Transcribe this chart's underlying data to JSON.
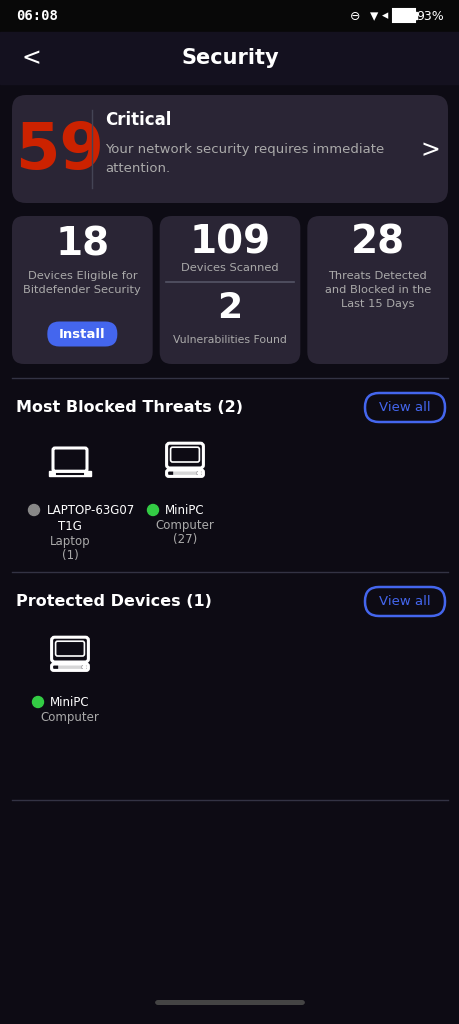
{
  "bg_color": "#0d0b14",
  "card_color": "#2a2535",
  "status_bar_bg": "#080808",
  "header_bg": "#14111f",
  "title": "Security",
  "time": "06:08",
  "battery": "93%",
  "critical_score": "59",
  "critical_label": "Critical",
  "critical_msg_line1": "Your network security requires immediate",
  "critical_msg_line2": "attention.",
  "stat1_value": "18",
  "stat1_label_line1": "Devices Eligible for",
  "stat1_label_line2": "Bitdefender Security",
  "stat1_button": "Install",
  "stat2_value": "109",
  "stat2_label": "Devices Scanned",
  "stat2_sub_value": "2",
  "stat2_sub_label": "Vulnerabilities Found",
  "stat3_value": "28",
  "stat3_label_line1": "Threats Detected",
  "stat3_label_line2": "and Blocked in the",
  "stat3_label_line3": "Last 15 Days",
  "section1_title": "Most Blocked Threats (2)",
  "section1_btn": "View all",
  "device1_name_line1": "LAPTOP-63G07",
  "device1_name_line2": "T1G",
  "device1_type_line1": "Laptop",
  "device1_type_line2": "(1)",
  "device1_dot_color": "#888888",
  "device2_name": "MiniPC",
  "device2_type_line1": "Computer",
  "device2_type_line2": "(27)",
  "device2_dot_color": "#33cc44",
  "section2_title": "Protected Devices (1)",
  "section2_btn": "View all",
  "device3_name": "MiniPC",
  "device3_type": "Computer",
  "device3_dot_color": "#33cc44",
  "red_color": "#cc2200",
  "blue_color": "#4466ee",
  "white_color": "#ffffff",
  "gray_color": "#aaaaaa",
  "sep_color": "#333344",
  "nav_bar_color": "#444444"
}
